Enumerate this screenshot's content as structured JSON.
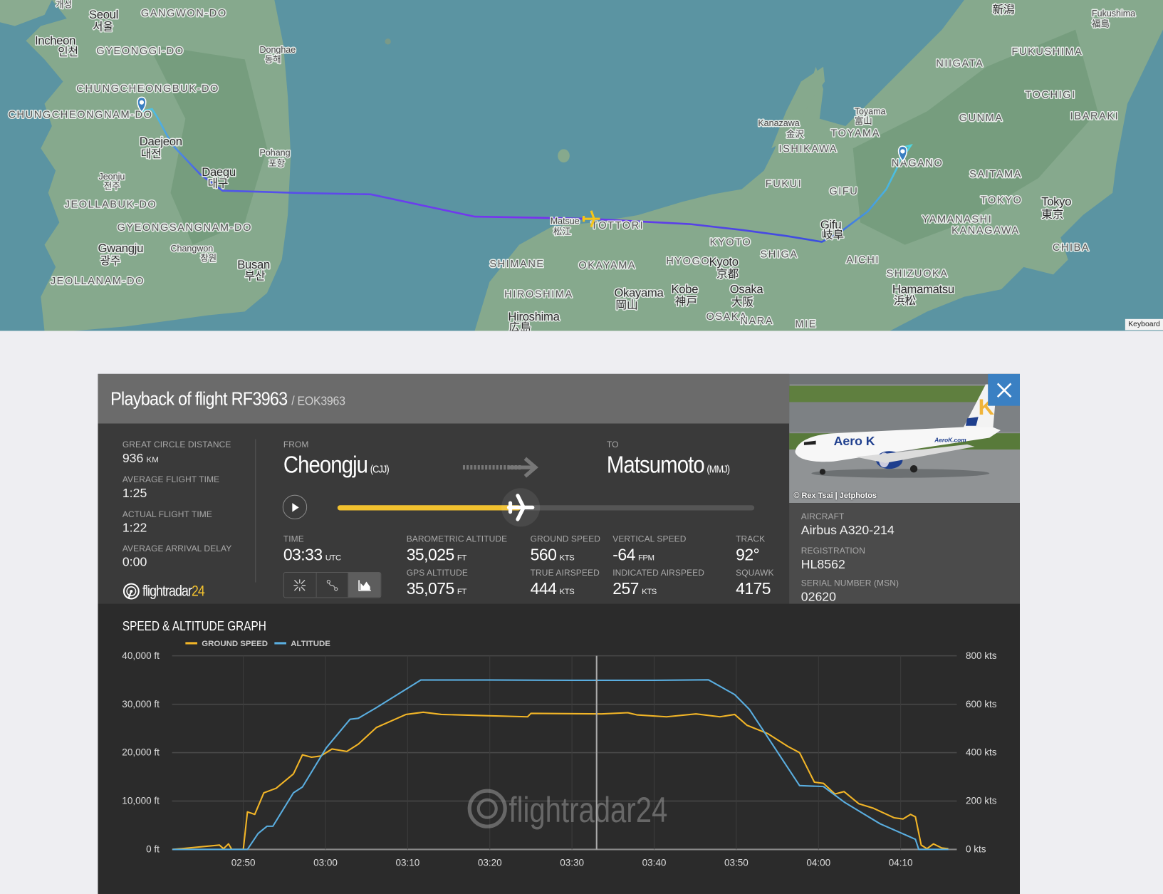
{
  "map": {
    "labels": [
      "개성",
      "Seoul",
      "서울",
      "GANGWON-DO",
      "Incheon",
      "인천",
      "GYEONGGI-DO",
      "Donghae",
      "동해",
      "CHUNGCHEONGBUK-DO",
      "CHUNGCHEONGNAM-DO",
      "Daejeon",
      "대전",
      "Pohang",
      "포항",
      "Daegu",
      "대구",
      "Jeonju",
      "전주",
      "JEOLLABUK-DO",
      "GYEONGSANGNAM-DO",
      "Gwangju",
      "광주",
      "Changwon",
      "창원",
      "Busan",
      "부산",
      "JEOLLANAM-DO",
      "新潟",
      "Fukushima",
      "福島",
      "FUKUSHIMA",
      "NIIGATA",
      "TOCHIGI",
      "GUNMA",
      "IBARAKI",
      "Toyama",
      "富山",
      "Kanazawa",
      "金沢",
      "TOYAMA",
      "ISHIKAWA",
      "NAGANO",
      "SAITAMA",
      "FUKUI",
      "GIFU",
      "TOKYO",
      "Tokyo",
      "東京",
      "YAMANASHI",
      "KANAGAWA",
      "CHIBA",
      "Gifu",
      "岐阜",
      "KYOTO",
      "SHIGA",
      "AICHI",
      "Matsue",
      "松江",
      "TOTTORI",
      "SHIMANE",
      "OKAYAMA",
      "HYOGO",
      "Kyoto",
      "京都",
      "SHIZUOKA",
      "Okayama",
      "岡山",
      "Kobe",
      "神戸",
      "Osaka",
      "大阪",
      "Hamamatsu",
      "浜松",
      "HIROSHIMA",
      "Hiroshima",
      "広島",
      "OSAKA",
      "NARA",
      "MIE"
    ],
    "keyboard_label": "Keyboard",
    "route_colors": {
      "low": "#4fd6e0",
      "high": "#7b2ff0"
    },
    "aircraft_color": "#f5c518"
  },
  "panel": {
    "title": "Playback of flight RF3963",
    "callsign": "/ EOK3963",
    "stats": [
      {
        "label": "GREAT CIRCLE DISTANCE",
        "value": "936",
        "unit": "KM"
      },
      {
        "label": "AVERAGE FLIGHT TIME",
        "value": "1:25"
      },
      {
        "label": "ACTUAL FLIGHT TIME",
        "value": "1:22"
      },
      {
        "label": "AVERAGE ARRIVAL DELAY",
        "value": "0:00"
      }
    ],
    "logo": {
      "text": "flightradar",
      "num": "24"
    },
    "from": {
      "label": "FROM",
      "city": "Cheongju",
      "code": "(CJJ)"
    },
    "to": {
      "label": "TO",
      "city": "Matsumoto",
      "code": "(MMJ)"
    },
    "playback_progress_pct": 44,
    "telemetry": {
      "time": {
        "label": "TIME",
        "value": "03:33",
        "unit": "UTC"
      },
      "baro_alt": {
        "label": "BAROMETRIC ALTITUDE",
        "value": "35,025",
        "unit": "FT"
      },
      "ground_speed": {
        "label": "GROUND SPEED",
        "value": "560",
        "unit": "KTS"
      },
      "vertical_speed": {
        "label": "VERTICAL SPEED",
        "value": "-64",
        "unit": "FPM"
      },
      "track": {
        "label": "TRACK",
        "value": "92°"
      },
      "gps_alt": {
        "label": "GPS ALTITUDE",
        "value": "35,075",
        "unit": "FT"
      },
      "true_airspeed": {
        "label": "TRUE AIRSPEED",
        "value": "444",
        "unit": "KTS"
      },
      "indicated_airspeed": {
        "label": "INDICATED AIRSPEED",
        "value": "257",
        "unit": "KTS"
      },
      "squawk": {
        "label": "SQUAWK",
        "value": "4175"
      }
    },
    "view_buttons": [
      {
        "icon": "collapse-icon",
        "active": false
      },
      {
        "icon": "route-icon",
        "active": false
      },
      {
        "icon": "area-chart-icon",
        "active": true
      }
    ],
    "photo": {
      "credit": "© Rex Tsai | Jetphotos",
      "livery_text": "Aero K",
      "tail_letter": "K",
      "fuselage_text": "AeroK.com"
    },
    "aircraft": [
      {
        "label": "AIRCRAFT",
        "value": "Airbus A320-214"
      },
      {
        "label": "REGISTRATION",
        "value": "HL8562"
      },
      {
        "label": "SERIAL NUMBER (MSN)",
        "value": "02620"
      }
    ],
    "accent": "#f2c12e",
    "close_color": "#3a80c3"
  },
  "graph": {
    "title": "SPEED & ALTITUDE GRAPH"
  },
  "chart_data": {
    "type": "line",
    "title": "SPEED & ALTITUDE GRAPH",
    "legend_position": "top-left",
    "grid": true,
    "x_ticks": [
      "02:50",
      "03:00",
      "03:10",
      "03:20",
      "03:30",
      "03:40",
      "03:50",
      "04:00",
      "04:10"
    ],
    "x_range": [
      "02:41:20",
      "04:16:50"
    ],
    "y_left_ticks": [
      "0 ft",
      "10,000 ft",
      "20,000 ft",
      "30,000 ft",
      "40,000 ft"
    ],
    "y_left_range": [
      0,
      40000
    ],
    "y_right_ticks": [
      "0 kts",
      "200 kts",
      "400 kts",
      "600 kts",
      "800 kts"
    ],
    "y_right_range": [
      0,
      800
    ],
    "cursor_time": "03:33",
    "watermark": "flightradar24",
    "series": [
      {
        "name": "GROUND SPEED",
        "axis": "right",
        "unit": "kts",
        "color": "#f2b527",
        "points": [
          [
            "02:41:24",
            0
          ],
          [
            "02:47:06",
            18
          ],
          [
            "02:47:36",
            3
          ],
          [
            "02:48:12",
            23
          ],
          [
            "02:48:36",
            0
          ],
          [
            "02:50:00",
            0
          ],
          [
            "02:50:30",
            155
          ],
          [
            "02:51:24",
            145
          ],
          [
            "02:52:30",
            234
          ],
          [
            "02:54:00",
            253
          ],
          [
            "02:56:06",
            312
          ],
          [
            "02:57:12",
            391
          ],
          [
            "02:58:18",
            381
          ],
          [
            "02:59:24",
            386
          ],
          [
            "03:00:48",
            415
          ],
          [
            "03:02:36",
            405
          ],
          [
            "03:04:00",
            435
          ],
          [
            "03:06:12",
            504
          ],
          [
            "03:09:48",
            558
          ],
          [
            "03:11:54",
            567
          ],
          [
            "03:14:06",
            558
          ],
          [
            "03:19:12",
            553
          ],
          [
            "03:24:36",
            548
          ],
          [
            "03:25:00",
            562
          ],
          [
            "03:33:36",
            560
          ],
          [
            "03:36:48",
            565
          ],
          [
            "03:37:54",
            556
          ],
          [
            "03:41:30",
            548
          ],
          [
            "03:45:06",
            560
          ],
          [
            "03:48:00",
            548
          ],
          [
            "03:49:48",
            558
          ],
          [
            "03:51:18",
            513
          ],
          [
            "03:53:48",
            479
          ],
          [
            "03:56:18",
            425
          ],
          [
            "03:57:42",
            400
          ],
          [
            "03:59:30",
            278
          ],
          [
            "04:00:36",
            273
          ],
          [
            "04:02:00",
            229
          ],
          [
            "04:03:06",
            239
          ],
          [
            "04:04:54",
            189
          ],
          [
            "04:06:42",
            170
          ],
          [
            "04:09:12",
            131
          ],
          [
            "04:10:18",
            126
          ],
          [
            "04:11:12",
            145
          ],
          [
            "04:11:48",
            135
          ],
          [
            "04:12:30",
            18
          ],
          [
            "04:13:12",
            3
          ],
          [
            "04:14:00",
            23
          ],
          [
            "04:15:00",
            6
          ],
          [
            "04:15:48",
            3
          ]
        ]
      },
      {
        "name": "ALTITUDE",
        "axis": "left",
        "unit": "ft",
        "color": "#5aaee0",
        "points": [
          [
            "02:41:24",
            0
          ],
          [
            "02:50:30",
            0
          ],
          [
            "02:51:48",
            3300
          ],
          [
            "02:52:54",
            4800
          ],
          [
            "02:53:36",
            4800
          ],
          [
            "02:56:06",
            11700
          ],
          [
            "02:57:12",
            12900
          ],
          [
            "03:00:06",
            21000
          ],
          [
            "03:03:00",
            26900
          ],
          [
            "03:04:00",
            27100
          ],
          [
            "03:06:12",
            29300
          ],
          [
            "03:11:36",
            35000
          ],
          [
            "03:20:00",
            35000
          ],
          [
            "03:30:00",
            34950
          ],
          [
            "03:40:00",
            34950
          ],
          [
            "03:46:36",
            35050
          ],
          [
            "03:49:48",
            32000
          ],
          [
            "03:51:36",
            28900
          ],
          [
            "03:57:42",
            13200
          ],
          [
            "04:00:36",
            13000
          ],
          [
            "04:03:12",
            9700
          ],
          [
            "04:07:30",
            5300
          ],
          [
            "04:11:48",
            2100
          ],
          [
            "04:12:12",
            0
          ],
          [
            "04:15:48",
            0
          ]
        ]
      }
    ]
  }
}
